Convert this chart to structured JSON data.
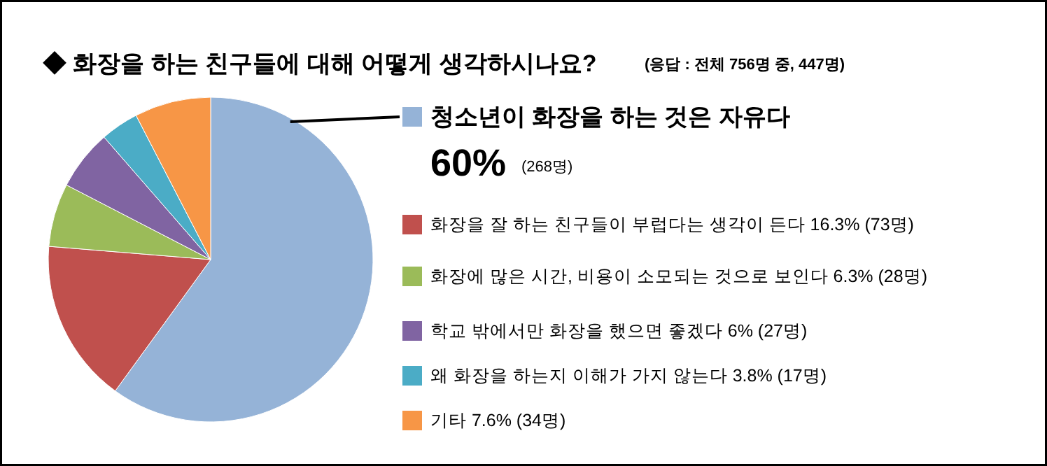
{
  "chart_data": {
    "type": "pie",
    "title": "◆ 화장을 하는 친구들에 대해 어떻게 생각하시나요?",
    "subtitle": "(응답 : 전체 756명 중, 447명)",
    "categories": [
      "청소년이 화장을 하는 것은 자유다",
      "화장을 잘 하는 친구들이 부럽다는 생각이 든다",
      "화장에 많은 시간, 비용이 소모되는 것으로 보인다",
      "학교 밖에서만 화장을 했으면 좋겠다",
      "왜 화장을 하는지 이해가 가지 않는다",
      "기타"
    ],
    "values": [
      60,
      16.3,
      6.3,
      6,
      3.8,
      7.6
    ],
    "colors": [
      "#95b3d7",
      "#c0504d",
      "#9bbb59",
      "#8064a2",
      "#4bacc6",
      "#f79646"
    ],
    "value_labels": [
      "60% (268명)",
      "16.3% (73명)",
      "6.3% (28명)",
      "6% (27명)",
      "3.8% (17명)",
      "7.6% (34명)"
    ],
    "legend": "right"
  }
}
